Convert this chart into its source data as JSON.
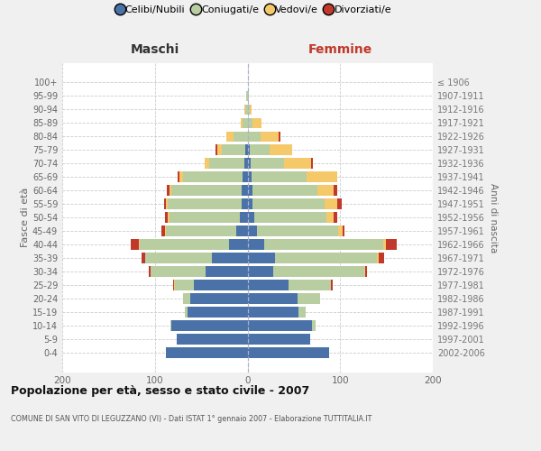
{
  "age_groups": [
    "100+",
    "95-99",
    "90-94",
    "85-89",
    "80-84",
    "75-79",
    "70-74",
    "65-69",
    "60-64",
    "55-59",
    "50-54",
    "45-49",
    "40-44",
    "35-39",
    "30-34",
    "25-29",
    "20-24",
    "15-19",
    "10-14",
    "5-9",
    "0-4"
  ],
  "birth_years": [
    "≤ 1906",
    "1907-1911",
    "1912-1916",
    "1917-1921",
    "1922-1926",
    "1927-1931",
    "1932-1936",
    "1937-1941",
    "1942-1946",
    "1947-1951",
    "1952-1956",
    "1957-1961",
    "1962-1966",
    "1967-1971",
    "1972-1976",
    "1977-1981",
    "1982-1986",
    "1987-1991",
    "1992-1996",
    "1997-2001",
    "2002-2006"
  ],
  "males": {
    "celibi": [
      0,
      0,
      0,
      0,
      0,
      2,
      3,
      5,
      6,
      6,
      8,
      12,
      20,
      38,
      45,
      58,
      62,
      65,
      82,
      76,
      88
    ],
    "coniugati": [
      0,
      1,
      2,
      5,
      15,
      26,
      38,
      65,
      76,
      80,
      76,
      76,
      96,
      72,
      60,
      20,
      8,
      3,
      1,
      0,
      0
    ],
    "vedovi": [
      0,
      0,
      1,
      2,
      8,
      5,
      5,
      3,
      2,
      2,
      2,
      1,
      1,
      0,
      0,
      1,
      0,
      0,
      0,
      0,
      0
    ],
    "divorziati": [
      0,
      0,
      0,
      0,
      0,
      2,
      0,
      2,
      3,
      2,
      3,
      4,
      9,
      4,
      2,
      1,
      0,
      0,
      0,
      0,
      0
    ]
  },
  "females": {
    "nubili": [
      0,
      0,
      0,
      0,
      0,
      2,
      3,
      4,
      5,
      5,
      7,
      10,
      18,
      30,
      28,
      44,
      54,
      55,
      70,
      68,
      88
    ],
    "coniugate": [
      0,
      1,
      2,
      5,
      14,
      22,
      36,
      60,
      70,
      78,
      78,
      88,
      128,
      110,
      98,
      46,
      24,
      8,
      3,
      0,
      0
    ],
    "vedove": [
      0,
      0,
      2,
      10,
      20,
      24,
      30,
      33,
      18,
      14,
      8,
      5,
      3,
      2,
      1,
      0,
      0,
      0,
      0,
      0,
      0
    ],
    "divorziate": [
      0,
      0,
      0,
      0,
      2,
      0,
      2,
      0,
      4,
      5,
      4,
      2,
      12,
      5,
      2,
      2,
      0,
      0,
      0,
      0,
      0
    ]
  },
  "colors": {
    "celibi": "#4a72a8",
    "coniugati": "#b8cda0",
    "vedovi": "#f5c96a",
    "divorziati": "#c0392b"
  },
  "xlim": 200,
  "title": "Popolazione per età, sesso e stato civile - 2007",
  "subtitle": "COMUNE DI SAN VITO DI LEGUZZANO (VI) - Dati ISTAT 1° gennaio 2007 - Elaborazione TUTTITALIA.IT",
  "ylabel_left": "Fasce di età",
  "ylabel_right": "Anni di nascita",
  "xlabel_left": "Maschi",
  "xlabel_right": "Femmine",
  "bg_color": "#f0f0f0",
  "plot_bg": "#ffffff"
}
